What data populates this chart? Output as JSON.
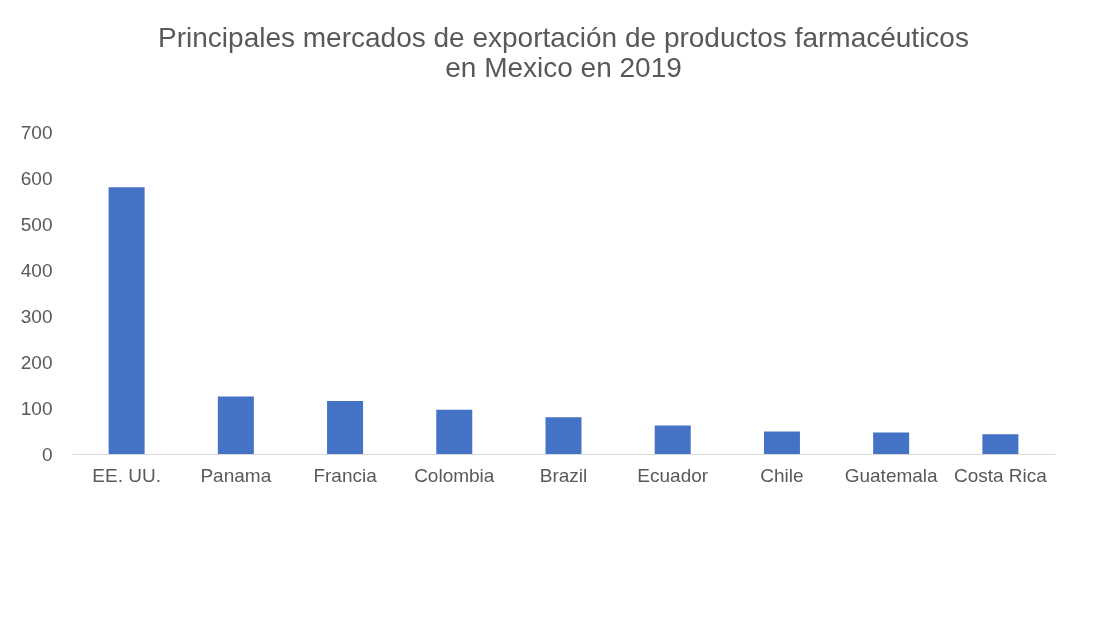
{
  "chart_data": {
    "type": "bar",
    "title": "Principales mercados de exportación de productos farmacéuticos\nen Mexico en 2019",
    "categories": [
      "EE. UU.",
      "Panama",
      "Francia",
      "Colombia",
      "Brazil",
      "Ecuador",
      "Chile",
      "Guatemala",
      "Costa Rica"
    ],
    "values": [
      580,
      125,
      115,
      96,
      80,
      62,
      49,
      47,
      43
    ],
    "color": "#4472c4",
    "ylim": [
      0,
      700
    ],
    "yticks": [
      0,
      100,
      200,
      300,
      400,
      500,
      600,
      700
    ],
    "grid": false
  }
}
